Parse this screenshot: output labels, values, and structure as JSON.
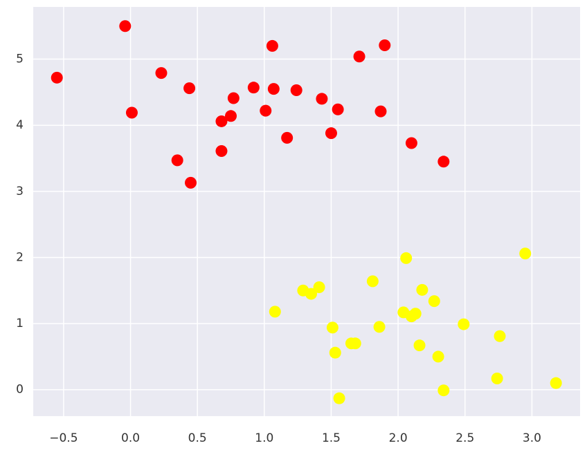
{
  "chart_data": {
    "type": "scatter",
    "series": [
      {
        "color": "#ff0000",
        "x": [
          -0.55,
          -0.04,
          0.01,
          0.23,
          0.44,
          0.35,
          0.45,
          0.68,
          0.68,
          0.75,
          0.77,
          0.92,
          1.01,
          1.06,
          1.07,
          1.17,
          1.24,
          1.43,
          1.5,
          1.55,
          1.71,
          1.9,
          1.87,
          2.1,
          2.34
        ],
        "values": [
          4.72,
          5.5,
          4.19,
          4.79,
          4.56,
          3.47,
          3.13,
          4.06,
          3.61,
          4.14,
          4.41,
          4.57,
          4.22,
          5.2,
          4.55,
          3.81,
          4.53,
          4.4,
          3.88,
          4.24,
          5.04,
          5.21,
          4.21,
          3.73,
          3.45
        ]
      },
      {
        "color": "#ffff00",
        "x": [
          1.08,
          1.29,
          1.35,
          1.41,
          1.51,
          1.53,
          1.56,
          1.65,
          1.68,
          1.81,
          1.86,
          2.04,
          2.06,
          2.1,
          2.13,
          2.18,
          2.16,
          2.27,
          2.3,
          2.34,
          2.49,
          2.74,
          2.76,
          2.95,
          3.18
        ],
        "values": [
          1.18,
          1.5,
          1.45,
          1.55,
          0.94,
          0.56,
          -0.13,
          0.7,
          0.7,
          1.64,
          0.95,
          1.17,
          1.99,
          1.11,
          1.15,
          1.51,
          0.67,
          1.34,
          0.5,
          -0.01,
          0.99,
          0.17,
          0.81,
          2.06,
          0.1
        ]
      }
    ],
    "xlim": [
      -0.727,
      3.36
    ],
    "ylim": [
      -0.4,
      5.79
    ],
    "xticks": [
      {
        "value": -0.5,
        "label": "−0.5"
      },
      {
        "value": 0,
        "label": "0.0"
      },
      0.5,
      {
        "value": 1,
        "label": "1.0"
      },
      1.5,
      {
        "value": 2,
        "label": "2.0"
      },
      2.5,
      {
        "value": 3,
        "label": "3.0"
      }
    ],
    "yticks": [
      0,
      1,
      2,
      3,
      4,
      5
    ],
    "grid": true,
    "background": "#eaeaf2"
  }
}
